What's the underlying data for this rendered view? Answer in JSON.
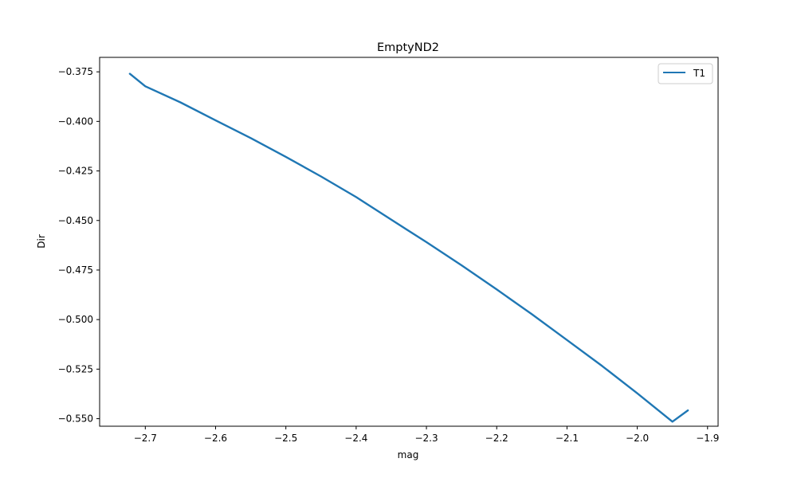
{
  "chart_data": {
    "type": "line",
    "title": "EmptyND2",
    "xlabel": "mag",
    "ylabel": "Dir",
    "xlim": [
      -2.765,
      -1.885
    ],
    "ylim": [
      -0.5538,
      -0.3677
    ],
    "xticks": [
      -2.7,
      -2.6,
      -2.5,
      -2.4,
      -2.3,
      -2.2,
      -2.1,
      -2.0,
      -1.9
    ],
    "xtick_labels": [
      "−2.7",
      "−2.6",
      "−2.5",
      "−2.4",
      "−2.3",
      "−2.2",
      "−2.1",
      "−2.0",
      "−1.9"
    ],
    "yticks": [
      -0.375,
      -0.4,
      -0.425,
      -0.45,
      -0.475,
      -0.5,
      -0.525,
      -0.55
    ],
    "ytick_labels": [
      "−0.375",
      "−0.400",
      "−0.425",
      "−0.450",
      "−0.475",
      "−0.500",
      "−0.525",
      "−0.550"
    ],
    "grid": false,
    "legend_position": "top-right",
    "series": [
      {
        "name": "T1",
        "color": "#1f77b4",
        "x": [
          -2.722,
          -2.7,
          -2.65,
          -2.6,
          -2.55,
          -2.5,
          -2.45,
          -2.4,
          -2.35,
          -2.3,
          -2.25,
          -2.2,
          -2.15,
          -2.1,
          -2.05,
          -2.0,
          -1.95,
          -1.928
        ],
        "y": [
          -0.376,
          -0.3823,
          -0.3904,
          -0.3995,
          -0.4084,
          -0.4179,
          -0.4278,
          -0.4382,
          -0.4496,
          -0.4609,
          -0.4726,
          -0.4848,
          -0.4973,
          -0.5103,
          -0.5234,
          -0.5372,
          -0.5515,
          -0.5458
        ]
      }
    ]
  }
}
